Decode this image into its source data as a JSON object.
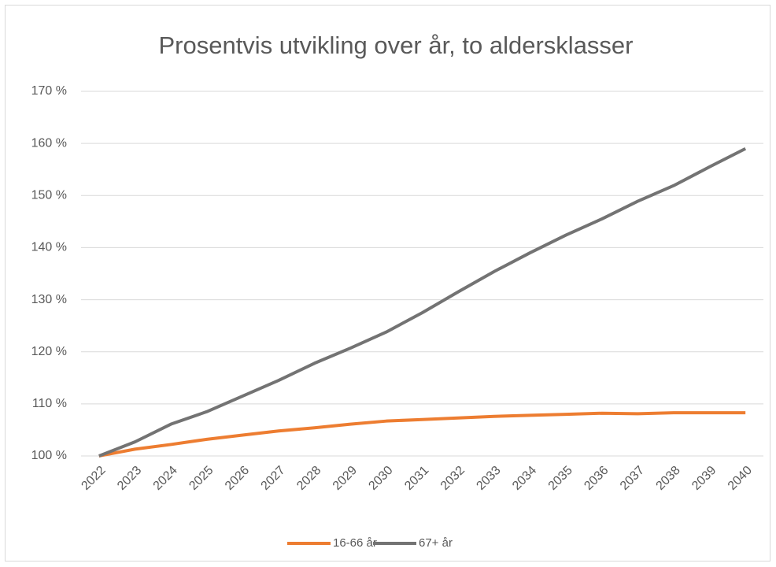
{
  "chart_data": {
    "type": "line",
    "title": "Prosentvis utvikling over år, to aldersklasser",
    "categories": [
      "2022",
      "2023",
      "2024",
      "2025",
      "2026",
      "2027",
      "2028",
      "2029",
      "2030",
      "2031",
      "2032",
      "2033",
      "2034",
      "2035",
      "2036",
      "2037",
      "2038",
      "2039",
      "2040"
    ],
    "series": [
      {
        "name": "16-66 år",
        "color": "#ed7d31",
        "values": [
          100,
          101.3,
          102.2,
          103.2,
          104.0,
          104.8,
          105.4,
          106.1,
          106.7,
          107.0,
          107.3,
          107.6,
          107.8,
          108.0,
          108.2,
          108.1,
          108.3,
          108.3,
          108.3
        ]
      },
      {
        "name": "67+ år",
        "color": "#737373",
        "values": [
          100,
          102.7,
          106.1,
          108.5,
          111.5,
          114.5,
          117.8,
          120.7,
          123.8,
          127.5,
          131.5,
          135.4,
          139.0,
          142.4,
          145.5,
          148.9,
          151.9,
          155.5,
          159.0
        ]
      }
    ],
    "ylim": [
      100,
      170
    ],
    "yticks": [
      {
        "value": 100,
        "label": "100 %"
      },
      {
        "value": 110,
        "label": "110 %"
      },
      {
        "value": 120,
        "label": "120 %"
      },
      {
        "value": 130,
        "label": "130 %"
      },
      {
        "value": 140,
        "label": "140 %"
      },
      {
        "value": 150,
        "label": "150 %"
      },
      {
        "value": 160,
        "label": "160 %"
      },
      {
        "value": 170,
        "label": "170 %"
      }
    ],
    "grid": true,
    "legend": "bottom"
  }
}
